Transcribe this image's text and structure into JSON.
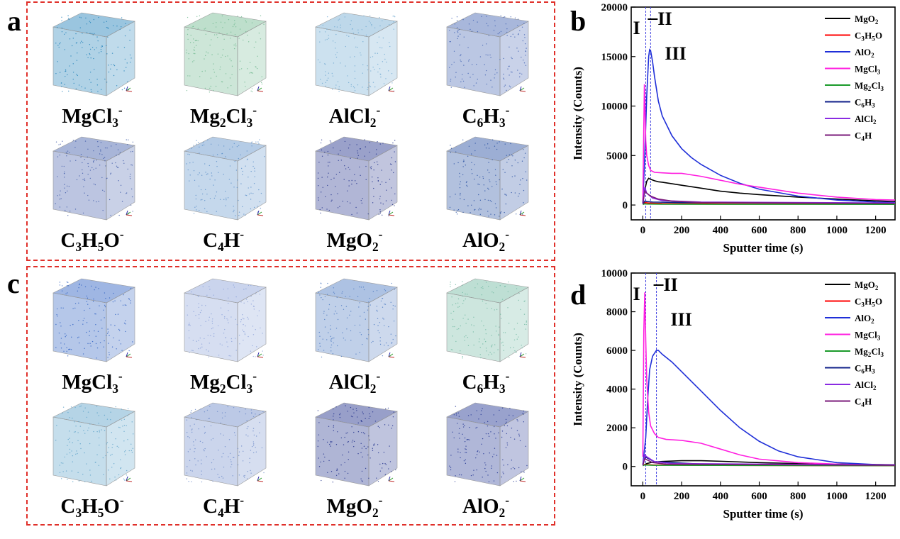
{
  "panels": {
    "a": {
      "letter": "a",
      "colors": [
        "#1e7fb8",
        "#6fb88f",
        "#6ea8d0",
        "#3d5fb0",
        "#3e5aa8",
        "#5a8fc8",
        "#1f2f8a",
        "#234ca0"
      ]
    },
    "b": {
      "letter": "b"
    },
    "c": {
      "letter": "c",
      "colors": [
        "#2a5ec0",
        "#8aa0d8",
        "#4a78c0",
        "#6fb8a0",
        "#5aa0c8",
        "#6a88c8",
        "#1a2a88",
        "#1c3090"
      ]
    },
    "d": {
      "letter": "d"
    }
  },
  "species_labels": [
    {
      "base": "MgCl",
      "sub": "3",
      "mid": "",
      "sub2": "",
      "tail": "",
      "sup": "-"
    },
    {
      "base": "Mg",
      "sub": "2",
      "mid": "Cl",
      "sub2": "3",
      "tail": "",
      "sup": "-"
    },
    {
      "base": "AlCl",
      "sub": "2",
      "mid": "",
      "sub2": "",
      "tail": "",
      "sup": "-"
    },
    {
      "base": "C",
      "sub": "6",
      "mid": "H",
      "sub2": "3",
      "tail": "",
      "sup": "-"
    },
    {
      "base": "C",
      "sub": "3",
      "mid": "H",
      "sub2": "5",
      "tail": "O",
      "sup": "-"
    },
    {
      "base": "C",
      "sub": "4",
      "mid": "H",
      "sub2": "",
      "tail": "",
      "sup": "-"
    },
    {
      "base": "MgO",
      "sub": "2",
      "mid": "",
      "sub2": "",
      "tail": "",
      "sup": "-"
    },
    {
      "base": "AlO",
      "sub": "2",
      "mid": "",
      "sub2": "",
      "tail": "",
      "sup": "-"
    }
  ],
  "legend": [
    {
      "base": "MgO",
      "sub": "2",
      "mid": "",
      "sub2": "",
      "tail": "",
      "color": "#000000"
    },
    {
      "base": "C",
      "sub": "3",
      "mid": "H",
      "sub2": "5",
      "tail": "O",
      "color": "#ff0000"
    },
    {
      "base": "AlO",
      "sub": "2",
      "mid": "",
      "sub2": "",
      "tail": "",
      "color": "#1f2fd8"
    },
    {
      "base": "MgCl",
      "sub": "3",
      "mid": "",
      "sub2": "",
      "tail": "",
      "color": "#ff1fe0"
    },
    {
      "base": "Mg",
      "sub": "2",
      "mid": "Cl",
      "sub2": "3",
      "tail": "",
      "color": "#1a9a2a"
    },
    {
      "base": "C",
      "sub": "6",
      "mid": "H",
      "sub2": "3",
      "tail": "",
      "color": "#10208a"
    },
    {
      "base": "AlCl",
      "sub": "2",
      "mid": "",
      "sub2": "",
      "tail": "",
      "color": "#8a2be2"
    },
    {
      "base": "C",
      "sub": "4",
      "mid": "H",
      "sub2": "",
      "tail": "",
      "color": "#7a1a7a"
    }
  ],
  "region_labels": {
    "I": "I",
    "II": "II",
    "III": "III"
  },
  "chart_data": [
    {
      "type": "line",
      "panel": "b",
      "xlabel": "Sputter time (s)",
      "ylabel": "Intensity (Counts)",
      "xlim": [
        -60,
        1300
      ],
      "ylim": [
        -1500,
        20000
      ],
      "xticks": [
        0,
        200,
        400,
        600,
        800,
        1000,
        1200
      ],
      "yticks": [
        0,
        5000,
        10000,
        15000,
        20000
      ],
      "region_boundaries": [
        15,
        40
      ],
      "series": [
        {
          "name": "MgO2",
          "color": "#000000",
          "x": [
            0,
            10,
            20,
            30,
            40,
            60,
            80,
            100,
            150,
            200,
            300,
            400,
            500,
            600,
            800,
            1000,
            1200,
            1300
          ],
          "y": [
            200,
            1500,
            2400,
            2700,
            2600,
            2450,
            2350,
            2300,
            2150,
            2000,
            1700,
            1400,
            1200,
            1050,
            800,
            600,
            420,
            350
          ]
        },
        {
          "name": "C3H5O",
          "color": "#ff0000",
          "x": [
            0,
            10,
            30,
            100,
            400,
            800,
            1300
          ],
          "y": [
            100,
            250,
            200,
            150,
            120,
            100,
            90
          ]
        },
        {
          "name": "AlO2",
          "color": "#1f2fd8",
          "x": [
            0,
            10,
            20,
            30,
            35,
            40,
            50,
            60,
            80,
            100,
            150,
            200,
            250,
            300,
            400,
            500,
            600,
            800,
            1000,
            1200,
            1300
          ],
          "y": [
            200,
            5000,
            11000,
            15000,
            15700,
            15600,
            14500,
            13000,
            10500,
            9000,
            7000,
            5700,
            4800,
            4100,
            3000,
            2200,
            1600,
            900,
            500,
            300,
            250
          ]
        },
        {
          "name": "MgCl3",
          "color": "#ff1fe0",
          "x": [
            0,
            5,
            8,
            12,
            15,
            20,
            30,
            40,
            60,
            100,
            150,
            200,
            300,
            400,
            500,
            600,
            800,
            1000,
            1200,
            1300
          ],
          "y": [
            500,
            8000,
            12200,
            9000,
            6500,
            5000,
            4000,
            3500,
            3300,
            3250,
            3200,
            3200,
            2900,
            2500,
            2100,
            1800,
            1200,
            800,
            550,
            500
          ]
        },
        {
          "name": "Mg2Cl3",
          "color": "#1a9a2a",
          "x": [
            0,
            10,
            20,
            100,
            1300
          ],
          "y": [
            50,
            120,
            100,
            80,
            60
          ]
        },
        {
          "name": "C6H3",
          "color": "#10208a",
          "x": [
            0,
            10,
            20,
            50,
            200,
            1300
          ],
          "y": [
            100,
            400,
            350,
            300,
            250,
            200
          ]
        },
        {
          "name": "AlCl2",
          "color": "#8a2be2",
          "x": [
            0,
            10,
            20,
            50,
            100,
            300,
            1300
          ],
          "y": [
            200,
            1800,
            1200,
            700,
            450,
            300,
            200
          ]
        },
        {
          "name": "C4H",
          "color": "#7a1a7a",
          "x": [
            0,
            10,
            20,
            40,
            80,
            150,
            300,
            1300
          ],
          "y": [
            100,
            1400,
            1200,
            900,
            600,
            400,
            250,
            150
          ]
        }
      ]
    },
    {
      "type": "line",
      "panel": "d",
      "xlabel": "Sputter time (s)",
      "ylabel": "Intensity (Counts)",
      "xlim": [
        -60,
        1300
      ],
      "ylim": [
        -1000,
        10000
      ],
      "xticks": [
        0,
        200,
        400,
        600,
        800,
        1000,
        1200
      ],
      "yticks": [
        0,
        2000,
        4000,
        6000,
        8000,
        10000
      ],
      "region_boundaries": [
        15,
        70
      ],
      "series": [
        {
          "name": "MgO2",
          "color": "#000000",
          "x": [
            0,
            20,
            50,
            100,
            200,
            300,
            400,
            600,
            800,
            1000,
            1200,
            1300
          ],
          "y": [
            50,
            150,
            220,
            260,
            300,
            300,
            270,
            200,
            150,
            120,
            100,
            90
          ]
        },
        {
          "name": "C3H5O",
          "color": "#ff0000",
          "x": [
            0,
            10,
            50,
            300,
            1300
          ],
          "y": [
            50,
            100,
            80,
            60,
            40
          ]
        },
        {
          "name": "AlO2",
          "color": "#1f2fd8",
          "x": [
            0,
            15,
            25,
            35,
            50,
            70,
            80,
            100,
            150,
            200,
            250,
            300,
            400,
            500,
            600,
            700,
            800,
            1000,
            1200,
            1300
          ],
          "y": [
            100,
            1500,
            3500,
            5000,
            5700,
            6000,
            6000,
            5800,
            5400,
            4900,
            4400,
            3900,
            2900,
            2000,
            1300,
            800,
            500,
            200,
            100,
            80
          ]
        },
        {
          "name": "MgCl3",
          "color": "#ff1fe0",
          "x": [
            0,
            5,
            10,
            15,
            20,
            30,
            40,
            60,
            80,
            120,
            200,
            300,
            400,
            500,
            600,
            800,
            1000,
            1200,
            1300
          ],
          "y": [
            500,
            7000,
            9000,
            6500,
            4500,
            2800,
            2100,
            1700,
            1500,
            1400,
            1350,
            1200,
            900,
            600,
            380,
            200,
            120,
            80,
            70
          ]
        },
        {
          "name": "Mg2Cl3",
          "color": "#1a9a2a",
          "x": [
            0,
            10,
            50,
            1300
          ],
          "y": [
            40,
            80,
            60,
            40
          ]
        },
        {
          "name": "C6H3",
          "color": "#10208a",
          "x": [
            0,
            10,
            20,
            60,
            300,
            1300
          ],
          "y": [
            100,
            500,
            450,
            250,
            120,
            80
          ]
        },
        {
          "name": "AlCl2",
          "color": "#8a2be2",
          "x": [
            0,
            10,
            20,
            60,
            150,
            1300
          ],
          "y": [
            100,
            600,
            500,
            250,
            150,
            80
          ]
        },
        {
          "name": "C4H",
          "color": "#7a1a7a",
          "x": [
            0,
            10,
            20,
            50,
            120,
            1300
          ],
          "y": [
            50,
            400,
            350,
            200,
            120,
            60
          ]
        }
      ]
    }
  ]
}
